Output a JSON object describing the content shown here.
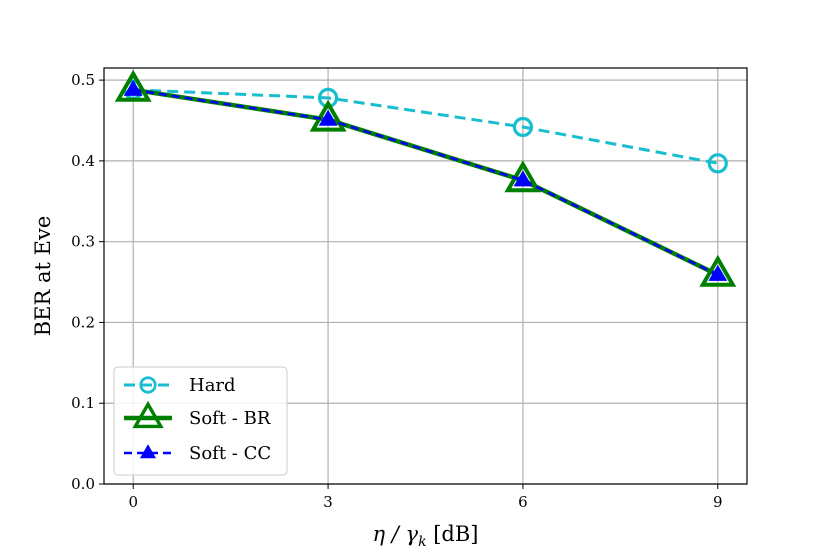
{
  "chart_data": {
    "type": "line",
    "xlabel_main": "η / γ",
    "xlabel_sub": "k",
    "xlabel_unit": " [dB]",
    "ylabel": "BER at Eve",
    "x": [
      0,
      3,
      6,
      9
    ],
    "xticks": [
      "0",
      "3",
      "6",
      "9"
    ],
    "yticks": [
      "0.0",
      "0.1",
      "0.2",
      "0.3",
      "0.4",
      "0.5"
    ],
    "xlim": [
      -0.45,
      9.45
    ],
    "ylim": [
      0.0,
      0.515
    ],
    "grid": true,
    "legend_position": "lower-left",
    "series": [
      {
        "name": "Hard",
        "values": [
          0.488,
          0.478,
          0.442,
          0.397
        ],
        "color": "#17becf",
        "linestyle": "dashed",
        "marker": "circle-open"
      },
      {
        "name": "Soft - BR",
        "values": [
          0.488,
          0.451,
          0.376,
          0.259
        ],
        "color": "#008000",
        "linestyle": "solid",
        "marker": "triangle-open"
      },
      {
        "name": "Soft - CC",
        "values": [
          0.488,
          0.451,
          0.376,
          0.259
        ],
        "color": "#0000ff",
        "linestyle": "dashed",
        "marker": "triangle-filled"
      }
    ]
  }
}
